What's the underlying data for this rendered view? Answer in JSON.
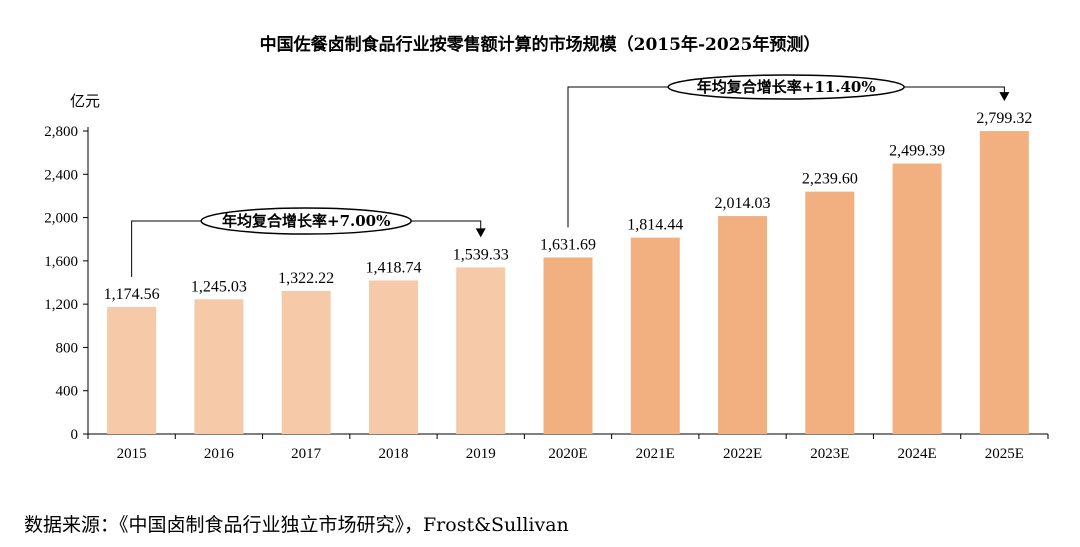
{
  "chart_data": {
    "type": "bar",
    "title": "中国佐餐卤制食品行业按零售额计算的市场规模（2015年-2025年预测）",
    "ylabel": "亿元",
    "xlabel": "",
    "ylim": [
      0,
      2800
    ],
    "yticks": [
      0,
      400,
      800,
      1200,
      1600,
      2000,
      2400,
      2800
    ],
    "ytick_labels": [
      "0",
      "400",
      "800",
      "1,200",
      "1,600",
      "2,000",
      "2,400",
      "2,800"
    ],
    "grid": false,
    "categories": [
      "2015",
      "2016",
      "2017",
      "2018",
      "2019",
      "2020E",
      "2021E",
      "2022E",
      "2023E",
      "2024E",
      "2025E"
    ],
    "values": [
      1174.56,
      1245.03,
      1322.22,
      1418.74,
      1539.33,
      1631.69,
      1814.44,
      2014.03,
      2239.6,
      2499.39,
      2799.32
    ],
    "value_labels": [
      "1,174.56",
      "1,245.03",
      "1,322.22",
      "1,418.74",
      "1,539.33",
      "1,631.69",
      "1,814.44",
      "2,014.03",
      "2,239.60",
      "2,499.39",
      "2,799.32"
    ],
    "series_colors": {
      "historical": "#F6C9A9",
      "forecast": "#F2AF80"
    },
    "annotations": [
      {
        "text": "年均复合增长率+7.00%",
        "from": "2015",
        "to": "2019"
      },
      {
        "text": "年均复合增长率+11.40%",
        "from": "2020E",
        "to": "2025E"
      }
    ]
  },
  "source": "数据来源：《中国卤制食品行业独立市场研究》，Frost&Sullivan"
}
